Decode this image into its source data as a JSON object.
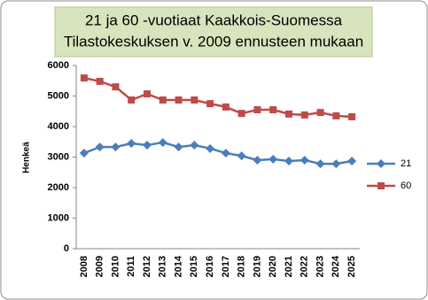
{
  "chart_data": {
    "type": "line",
    "title": [
      "21 ja 60 -vuotiaat Kaakkois-Suomessa",
      "Tilastokeskuksen v. 2009 ennusteen mukaan"
    ],
    "y_label": "Henkeä",
    "categories": [
      "2008",
      "2009",
      "2010",
      "2011",
      "2012",
      "2013",
      "2014",
      "2015",
      "2016",
      "2017",
      "2018",
      "2019",
      "2020",
      "2021",
      "2022",
      "2023",
      "2024",
      "2025"
    ],
    "series": [
      {
        "name": "21",
        "color": "#4a7ebb",
        "marker": "diamond",
        "values": [
          3130,
          3330,
          3330,
          3450,
          3390,
          3480,
          3330,
          3390,
          3280,
          3130,
          3040,
          2900,
          2930,
          2870,
          2900,
          2780,
          2780,
          2870
        ]
      },
      {
        "name": "60",
        "color": "#be4b48",
        "marker": "square",
        "values": [
          5590,
          5480,
          5300,
          4870,
          5070,
          4870,
          4870,
          4870,
          4750,
          4640,
          4430,
          4550,
          4550,
          4410,
          4380,
          4460,
          4350,
          4320
        ]
      }
    ],
    "ylim": [
      0,
      6000
    ],
    "yticks": [
      0,
      1000,
      2000,
      3000,
      4000,
      5000,
      6000
    ],
    "legend": "right"
  }
}
